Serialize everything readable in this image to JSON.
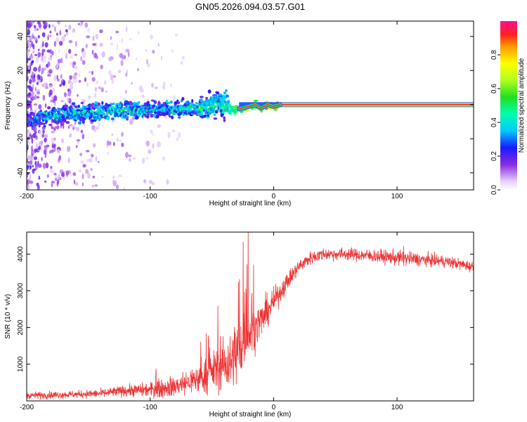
{
  "title": "GN05.2026.094.03.57.G01",
  "colors": {
    "snr_line": "#ee3333",
    "ridge_core": "#e8223a",
    "ridge_edge": "#1a3cff",
    "frame": "#000000"
  },
  "colorbar": {
    "label": "Normalized spectral amplitude",
    "ticks": [
      "0.0",
      "0.2",
      "0.4",
      "0.6",
      "0.8"
    ],
    "tick_values": [
      0.0,
      0.2,
      0.4,
      0.6,
      0.8
    ],
    "range": [
      0,
      1
    ]
  },
  "chart_data": [
    {
      "type": "heatmap",
      "name": "spectrogram",
      "xlabel": "Height of straight line (km)",
      "ylabel": "Frequency (Hz)",
      "xlim": [
        -200,
        162
      ],
      "ylim": [
        -50,
        49
      ],
      "xticks": [
        -200,
        -100,
        0,
        100
      ],
      "xtick_labels": [
        "-200",
        "-100",
        "0",
        "100"
      ],
      "yticks": [
        -40,
        -20,
        0,
        20,
        40
      ],
      "ytick_labels": [
        "-40",
        "-20",
        "0",
        "20",
        "40"
      ],
      "ridge": {
        "description": "dominant frequency track",
        "x": [
          -200,
          -180,
          -160,
          -140,
          -120,
          -100,
          -80,
          -60,
          -45,
          -35,
          -25,
          -15,
          -10,
          -5,
          0,
          5,
          50,
          100,
          162
        ],
        "freq": [
          -10,
          -6,
          -5,
          -4,
          -3,
          -3,
          -3,
          -2,
          0,
          -3,
          -2,
          0,
          -2,
          0,
          -1,
          0,
          0,
          0,
          0
        ],
        "amplitude": [
          0.25,
          0.35,
          0.35,
          0.4,
          0.4,
          0.35,
          0.35,
          0.4,
          0.45,
          0.5,
          0.6,
          0.7,
          0.75,
          0.8,
          0.85,
          0.9,
          0.9,
          0.9,
          0.9
        ]
      }
    },
    {
      "type": "line",
      "name": "snr",
      "xlabel": "Height of straight line (km)",
      "ylabel": "SNR (10 * v/v)",
      "xlim": [
        -200,
        162
      ],
      "ylim": [
        0,
        4600
      ],
      "xticks": [
        -200,
        -100,
        0,
        100
      ],
      "xtick_labels": [
        "-200",
        "-100",
        "0",
        "100"
      ],
      "yticks": [
        1000,
        2000,
        3000,
        4000
      ],
      "ytick_labels": [
        "1000",
        "2000",
        "3000",
        "4000"
      ],
      "envelope": {
        "x": [
          -200,
          -180,
          -160,
          -140,
          -120,
          -100,
          -80,
          -60,
          -50,
          -40,
          -30,
          -20,
          -10,
          0,
          10,
          20,
          30,
          40,
          60,
          80,
          100,
          120,
          140,
          162
        ],
        "mean": [
          150,
          160,
          180,
          200,
          280,
          300,
          400,
          600,
          800,
          1000,
          1300,
          1800,
          2200,
          2700,
          3200,
          3650,
          3900,
          4000,
          4000,
          3950,
          3900,
          3850,
          3800,
          3650
        ],
        "noise": [
          100,
          100,
          100,
          120,
          150,
          200,
          300,
          400,
          500,
          700,
          900,
          700,
          500,
          350,
          250,
          200,
          180,
          170,
          170,
          180,
          200,
          180,
          160,
          150
        ]
      }
    }
  ]
}
